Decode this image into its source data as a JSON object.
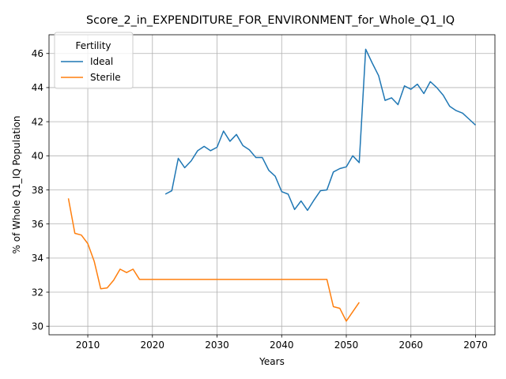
{
  "chart_data": {
    "type": "line",
    "title": "Score_2_in_EXPENDITURE_FOR_ENVIRONMENT_for_Whole_Q1_IQ",
    "xlabel": "Years",
    "ylabel": "% of Whole Q1_IQ Population",
    "xlim": [
      2004,
      2073
    ],
    "ylim": [
      29.5,
      47.1
    ],
    "xticks": [
      2010,
      2020,
      2030,
      2040,
      2050,
      2060,
      2070
    ],
    "yticks": [
      30,
      32,
      34,
      36,
      38,
      40,
      42,
      44,
      46
    ],
    "grid": true,
    "legend": {
      "title": "Fertility",
      "position": "upper-left"
    },
    "series": [
      {
        "name": "Ideal",
        "color": "#1f77b4",
        "x": [
          2022,
          2023,
          2024,
          2025,
          2026,
          2027,
          2028,
          2029,
          2030,
          2031,
          2032,
          2033,
          2034,
          2035,
          2036,
          2037,
          2038,
          2039,
          2040,
          2041,
          2042,
          2043,
          2044,
          2045,
          2046,
          2047,
          2048,
          2049,
          2050,
          2051,
          2052,
          2053,
          2054,
          2055,
          2056,
          2057,
          2058,
          2059,
          2060,
          2061,
          2062,
          2063,
          2064,
          2065,
          2066,
          2067,
          2068,
          2069,
          2070
        ],
        "y": [
          37.75,
          37.95,
          39.85,
          39.3,
          39.7,
          40.3,
          40.55,
          40.3,
          40.5,
          41.45,
          40.85,
          41.25,
          40.6,
          40.35,
          39.9,
          39.9,
          39.15,
          38.8,
          37.9,
          37.75,
          36.85,
          37.35,
          36.8,
          37.4,
          37.95,
          38.0,
          39.05,
          39.25,
          39.35,
          40.0,
          39.6,
          46.25,
          45.45,
          44.7,
          43.25,
          43.4,
          43.0,
          44.1,
          43.9,
          44.2,
          43.65,
          44.35,
          44.0,
          43.55,
          42.9,
          42.65,
          42.5,
          42.15,
          41.8
        ]
      },
      {
        "name": "Sterile",
        "color": "#ff7f0e",
        "x": [
          2007,
          2008,
          2009,
          2010,
          2011,
          2012,
          2013,
          2014,
          2015,
          2016,
          2017,
          2018,
          2019,
          2020,
          2021,
          2022,
          2023,
          2024,
          2025,
          2026,
          2027,
          2028,
          2029,
          2030,
          2031,
          2032,
          2033,
          2034,
          2035,
          2036,
          2037,
          2038,
          2039,
          2040,
          2041,
          2042,
          2043,
          2044,
          2045,
          2046,
          2047,
          2048,
          2049,
          2050,
          2051,
          2052
        ],
        "y": [
          37.5,
          35.45,
          35.35,
          34.85,
          33.8,
          32.2,
          32.25,
          32.7,
          33.35,
          33.15,
          33.35,
          32.75,
          32.75,
          32.75,
          32.75,
          32.75,
          32.75,
          32.75,
          32.75,
          32.75,
          32.75,
          32.75,
          32.75,
          32.75,
          32.75,
          32.75,
          32.75,
          32.75,
          32.75,
          32.75,
          32.75,
          32.75,
          32.75,
          32.75,
          32.75,
          32.75,
          32.75,
          32.75,
          32.75,
          32.75,
          32.75,
          31.15,
          31.05,
          30.3,
          30.85,
          31.4
        ]
      }
    ]
  }
}
